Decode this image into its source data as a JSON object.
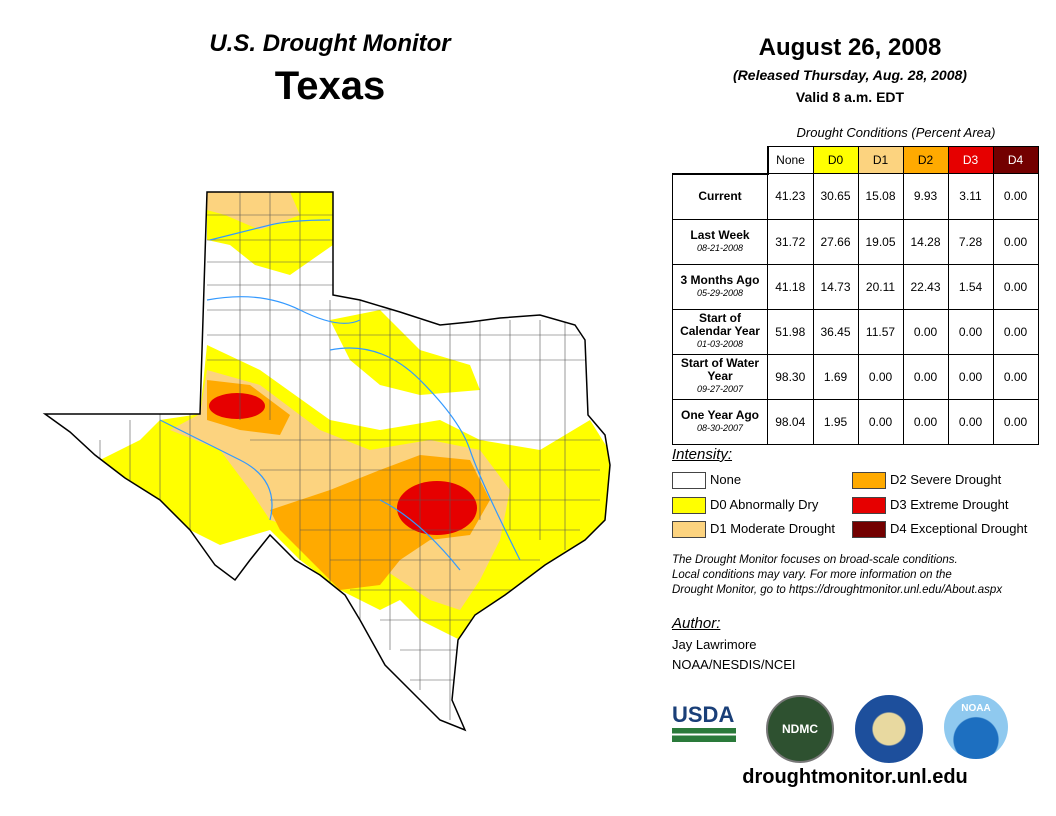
{
  "header": {
    "title": "U.S. Drought Monitor",
    "state": "Texas",
    "date": "August 26, 2008",
    "released": "(Released Thursday, Aug. 28, 2008)",
    "valid": "Valid 8 a.m. EDT"
  },
  "table": {
    "caption": "Drought Conditions (Percent Area)",
    "columns": [
      "None",
      "D0",
      "D1",
      "D2",
      "D3",
      "D4"
    ],
    "column_colors": [
      "#ffffff",
      "#ffff00",
      "#fcd37f",
      "#ffaa00",
      "#e60000",
      "#730000"
    ],
    "rows": [
      {
        "label": "Current",
        "date": "",
        "values": [
          "41.23",
          "30.65",
          "15.08",
          "9.93",
          "3.11",
          "0.00"
        ]
      },
      {
        "label": "Last Week",
        "date": "08-21-2008",
        "values": [
          "31.72",
          "27.66",
          "19.05",
          "14.28",
          "7.28",
          "0.00"
        ]
      },
      {
        "label": "3 Months Ago",
        "date": "05-29-2008",
        "values": [
          "41.18",
          "14.73",
          "20.11",
          "22.43",
          "1.54",
          "0.00"
        ]
      },
      {
        "label": "Start of Calendar Year",
        "date": "01-03-2008",
        "values": [
          "51.98",
          "36.45",
          "11.57",
          "0.00",
          "0.00",
          "0.00"
        ]
      },
      {
        "label": "Start of Water Year",
        "date": "09-27-2007",
        "values": [
          "98.30",
          "1.69",
          "0.00",
          "0.00",
          "0.00",
          "0.00"
        ]
      },
      {
        "label": "One Year Ago",
        "date": "08-30-2007",
        "values": [
          "98.04",
          "1.95",
          "0.00",
          "0.00",
          "0.00",
          "0.00"
        ]
      }
    ]
  },
  "legend": {
    "title": "Intensity:",
    "items": [
      "None",
      "D0 Abnormally Dry",
      "D1 Moderate Drought",
      "D2 Severe Drought",
      "D3 Extreme Drought",
      "D4 Exceptional Drought"
    ]
  },
  "note": [
    "The Drought Monitor focuses on broad-scale conditions.",
    "Local conditions may vary. For more information on the",
    "Drought Monitor, go to https://droughtmonitor.unl.edu/About.aspx"
  ],
  "author": {
    "title": "Author:",
    "name": "Jay Lawrimore",
    "org": "NOAA/NESDIS/NCEI"
  },
  "logos": [
    "USDA",
    "NDMC",
    "DOC",
    "NOAA"
  ],
  "footer": "droughtmonitor.unl.edu"
}
